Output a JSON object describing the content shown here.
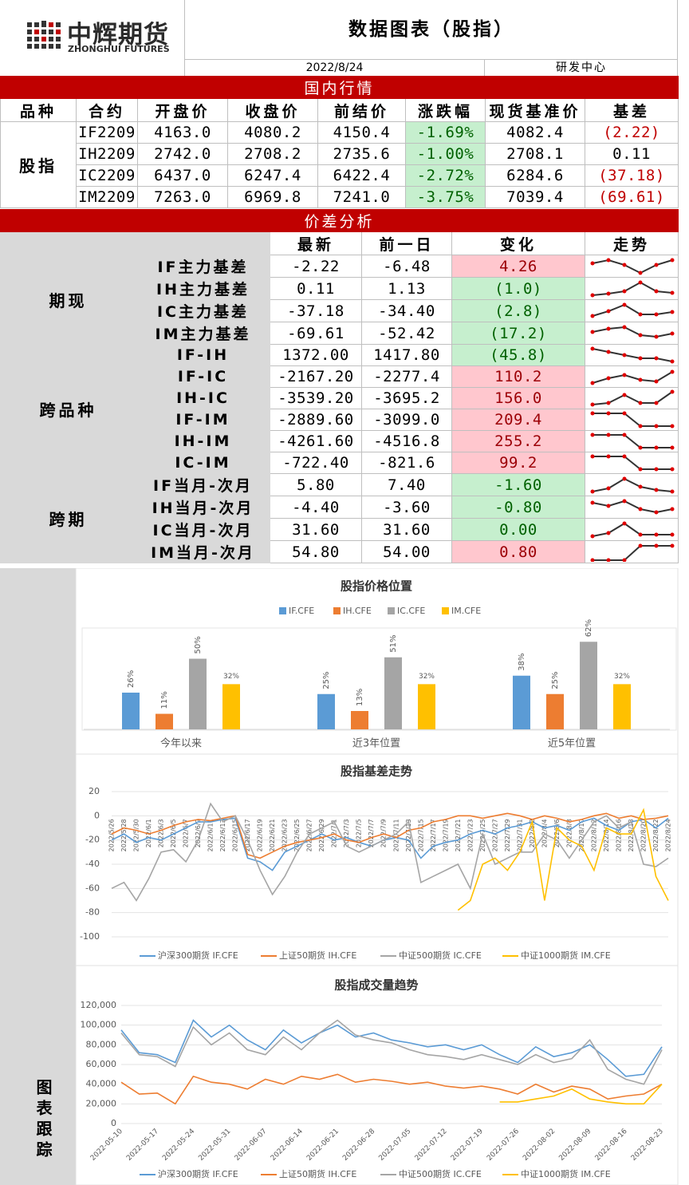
{
  "header": {
    "logo_name": "中辉期货",
    "logo_sub": "ZHONGHUI FUTURES",
    "title": "数据图表（股指）",
    "date": "2022/8/24",
    "dept": "研发中心"
  },
  "market": {
    "title": "国内行情",
    "headers": [
      "品种",
      "合约",
      "开盘价",
      "收盘价",
      "前结价",
      "涨跌幅",
      "现货基准价",
      "基差"
    ],
    "group": "股指",
    "rows": [
      [
        "IF2209",
        "4163.0",
        "4080.2",
        "4150.4",
        "-1.69%",
        "4082.4",
        "(2.22)"
      ],
      [
        "IH2209",
        "2742.0",
        "2708.2",
        "2735.6",
        "-1.00%",
        "2708.1",
        "0.11"
      ],
      [
        "IC2209",
        "6437.0",
        "6247.4",
        "6422.4",
        "-2.72%",
        "6284.6",
        "(37.18)"
      ],
      [
        "IM2209",
        "7263.0",
        "6969.8",
        "7241.0",
        "-3.75%",
        "7039.4",
        "(69.61)"
      ]
    ]
  },
  "spread": {
    "title": "价差分析",
    "headers": [
      "最新",
      "前一日",
      "变化",
      "走势"
    ],
    "groups": [
      {
        "name": "期现",
        "rows": [
          [
            "IF主力基差",
            "-2.22",
            "-6.48",
            "4.26"
          ],
          [
            "IH主力基差",
            "0.11",
            "1.13",
            "(1.0)"
          ],
          [
            "IC主力基差",
            "-37.18",
            "-34.40",
            "(2.8)"
          ],
          [
            "IM主力基差",
            "-69.61",
            "-52.42",
            "(17.2)"
          ]
        ]
      },
      {
        "name": "跨品种",
        "rows": [
          [
            "IF-IH",
            "1372.00",
            "1417.80",
            "(45.8)"
          ],
          [
            "IF-IC",
            "-2167.20",
            "-2277.4",
            "110.2"
          ],
          [
            "IH-IC",
            "-3539.20",
            "-3695.2",
            "156.0"
          ],
          [
            "IF-IM",
            "-2889.60",
            "-3099.0",
            "209.4"
          ],
          [
            "IH-IM",
            "-4261.60",
            "-4516.8",
            "255.2"
          ],
          [
            "IC-IM",
            "-722.40",
            "-821.6",
            "99.2"
          ]
        ]
      },
      {
        "name": "跨期",
        "rows": [
          [
            "IF当月-次月",
            "5.80",
            "7.40",
            "-1.60"
          ],
          [
            "IH当月-次月",
            "-4.40",
            "-3.60",
            "-0.80"
          ],
          [
            "IC当月-次月",
            "31.60",
            "31.60",
            "0.00"
          ],
          [
            "IM当月-次月",
            "54.80",
            "54.00",
            "0.80"
          ]
        ]
      }
    ]
  },
  "side_label": "图表跟踪",
  "chart_data": [
    {
      "type": "bar",
      "title": "股指价格位置",
      "categories": [
        "今年以来",
        "近3年位置",
        "近5年位置"
      ],
      "series": [
        {
          "name": "IF.CFE",
          "color": "#5b9bd5",
          "values": [
            26,
            25,
            38
          ],
          "value_labels": [
            "26%",
            "25%",
            "38%"
          ]
        },
        {
          "name": "IH.CFE",
          "color": "#ed7d31",
          "values": [
            11,
            13,
            25
          ],
          "value_labels": [
            "11%",
            "13%",
            "25%"
          ]
        },
        {
          "name": "IC.CFE",
          "color": "#a5a5a5",
          "values": [
            50,
            51,
            62
          ],
          "value_labels": [
            "50%",
            "51%",
            "62%"
          ]
        },
        {
          "name": "IM.CFE",
          "color": "#ffc000",
          "values": [
            32,
            32,
            32
          ],
          "value_labels": [
            "32%",
            "32%",
            "32%"
          ]
        }
      ]
    },
    {
      "type": "line",
      "title": "股指基差走势",
      "categories": [
        "2022/5/26",
        "2022/5/28",
        "2022/5/30",
        "2022/6/1",
        "2022/6/3",
        "2022/6/5",
        "2022/6/7",
        "2022/6/9",
        "2022/6/11",
        "2022/6/13",
        "2022/6/15",
        "2022/6/17",
        "2022/6/19",
        "2022/6/21",
        "2022/6/23",
        "2022/6/25",
        "2022/6/27",
        "2022/6/29",
        "2022/7/1",
        "2022/7/3",
        "2022/7/5",
        "2022/7/7",
        "2022/7/9",
        "2022/7/11",
        "2022/7/13",
        "2022/7/15",
        "2022/7/17",
        "2022/7/19",
        "2022/7/21",
        "2022/7/23",
        "2022/7/25",
        "2022/7/27",
        "2022/7/29",
        "2022/7/31",
        "2022/8/2",
        "2022/8/4",
        "2022/8/6",
        "2022/8/8",
        "2022/8/10",
        "2022/8/12",
        "2022/8/14",
        "2022/8/16",
        "2022/8/18",
        "2022/8/20",
        "2022/8/22",
        "2022/8/24"
      ],
      "ylim": [
        -100,
        20
      ],
      "yticks": [
        -100,
        -80,
        -60,
        -40,
        -20,
        0,
        20
      ],
      "grid": true,
      "series": [
        {
          "name": "沪深300期货 IF.CFE",
          "color": "#5b9bd5",
          "values": [
            -20,
            -15,
            -22,
            -18,
            -20,
            -15,
            -10,
            -5,
            -5,
            -3,
            -2,
            -35,
            -38,
            -45,
            -30,
            -25,
            -20,
            -15,
            -20,
            -18,
            -22,
            -25,
            -20,
            -18,
            -20,
            -35,
            -25,
            -22,
            -20,
            -15,
            -12,
            -15,
            -10,
            -8,
            -5,
            -10,
            -8,
            -12,
            -5,
            -2,
            -8,
            -12,
            -5,
            -3,
            -10,
            -2
          ]
        },
        {
          "name": "上证50期货 IH.CFE",
          "color": "#ed7d31",
          "values": [
            -15,
            -10,
            -12,
            -15,
            -12,
            -8,
            -5,
            -3,
            -4,
            -2,
            0,
            -32,
            -35,
            -30,
            -25,
            -22,
            -20,
            -18,
            -15,
            -20,
            -22,
            -18,
            -15,
            -18,
            -12,
            -10,
            -5,
            -3,
            0,
            0,
            -2,
            0,
            2,
            0,
            -3,
            0,
            -2,
            -5,
            -3,
            0,
            2,
            -2,
            0,
            -3,
            -2,
            0
          ]
        },
        {
          "name": "中证500期货 IC.CFE",
          "color": "#a5a5a5",
          "values": [
            -60,
            -55,
            -70,
            -52,
            -30,
            -28,
            -38,
            -20,
            10,
            -5,
            0,
            -20,
            -45,
            -65,
            -50,
            -30,
            -15,
            -10,
            -5,
            -25,
            -30,
            -25,
            -20,
            -15,
            -5,
            -55,
            -50,
            -45,
            -40,
            -60,
            -15,
            -40,
            -35,
            -30,
            -30,
            -15,
            -20,
            -35,
            -20,
            -5,
            0,
            -10,
            -5,
            -40,
            -42,
            -35
          ]
        },
        {
          "name": "中证1000期货 IM.CFE",
          "color": "#ffc000",
          "values": [
            null,
            null,
            null,
            null,
            null,
            null,
            null,
            null,
            null,
            null,
            null,
            null,
            null,
            null,
            null,
            null,
            null,
            null,
            null,
            null,
            null,
            null,
            null,
            null,
            null,
            null,
            null,
            null,
            -78,
            -70,
            -40,
            -35,
            -45,
            -30,
            -5,
            -70,
            -10,
            -20,
            -25,
            -45,
            -10,
            -15,
            -15,
            5,
            -50,
            -70
          ]
        }
      ]
    },
    {
      "type": "line",
      "title": "股指成交量趋势",
      "categories": [
        "2022-05-10",
        null,
        "2022-05-17",
        null,
        "2022-05-24",
        null,
        "2022-05-31",
        null,
        "2022-06-07",
        null,
        "2022-06-14",
        null,
        "2022-06-21",
        null,
        "2022-06-28",
        null,
        "2022-07-05",
        null,
        "2022-07-12",
        null,
        "2022-07-19",
        null,
        "2022-07-26",
        null,
        "2022-08-02",
        null,
        "2022-08-09",
        null,
        "2022-08-16",
        null,
        "2022-08-23"
      ],
      "ylim": [
        0,
        120000
      ],
      "yticks": [
        0,
        {
          "value": 20000,
          "label": "20,000"
        },
        {
          "value": 40000,
          "label": "40,000"
        },
        {
          "value": 60000,
          "label": "60,000"
        },
        {
          "value": 80000,
          "label": "80,000"
        },
        {
          "value": 100000,
          "label": "100,000"
        },
        {
          "value": 120000,
          "label": "120,000"
        }
      ],
      "grid": true,
      "series": [
        {
          "name": "沪深300期货 IF.CFE",
          "color": "#5b9bd5",
          "values": [
            95000,
            72000,
            70000,
            62000,
            105000,
            88000,
            100000,
            85000,
            75000,
            95000,
            82000,
            92000,
            100000,
            88000,
            92000,
            85000,
            82000,
            78000,
            80000,
            75000,
            80000,
            70000,
            62000,
            78000,
            68000,
            72000,
            80000,
            65000,
            48000,
            50000,
            78000
          ]
        },
        {
          "name": "上证50期货 IH.CFE",
          "color": "#ed7d31",
          "values": [
            42000,
            30000,
            31000,
            20000,
            48000,
            42000,
            40000,
            35000,
            45000,
            40000,
            48000,
            45000,
            50000,
            42000,
            45000,
            43000,
            40000,
            42000,
            38000,
            36000,
            38000,
            35000,
            30000,
            40000,
            32000,
            38000,
            35000,
            25000,
            28000,
            30000,
            40000
          ]
        },
        {
          "name": "中证500期货 IC.CFE",
          "color": "#a5a5a5",
          "values": [
            92000,
            70000,
            68000,
            58000,
            98000,
            80000,
            92000,
            75000,
            70000,
            88000,
            75000,
            92000,
            105000,
            90000,
            85000,
            82000,
            75000,
            70000,
            68000,
            65000,
            70000,
            65000,
            60000,
            70000,
            62000,
            66000,
            85000,
            55000,
            45000,
            40000,
            75000
          ]
        },
        {
          "name": "中证1000期货 IM.CFE",
          "color": "#ffc000",
          "values": [
            null,
            null,
            null,
            null,
            null,
            null,
            null,
            null,
            null,
            null,
            null,
            null,
            null,
            null,
            null,
            null,
            null,
            null,
            null,
            null,
            null,
            22000,
            22000,
            25000,
            28000,
            35000,
            25000,
            22000,
            20000,
            20000,
            40000
          ]
        }
      ]
    }
  ]
}
